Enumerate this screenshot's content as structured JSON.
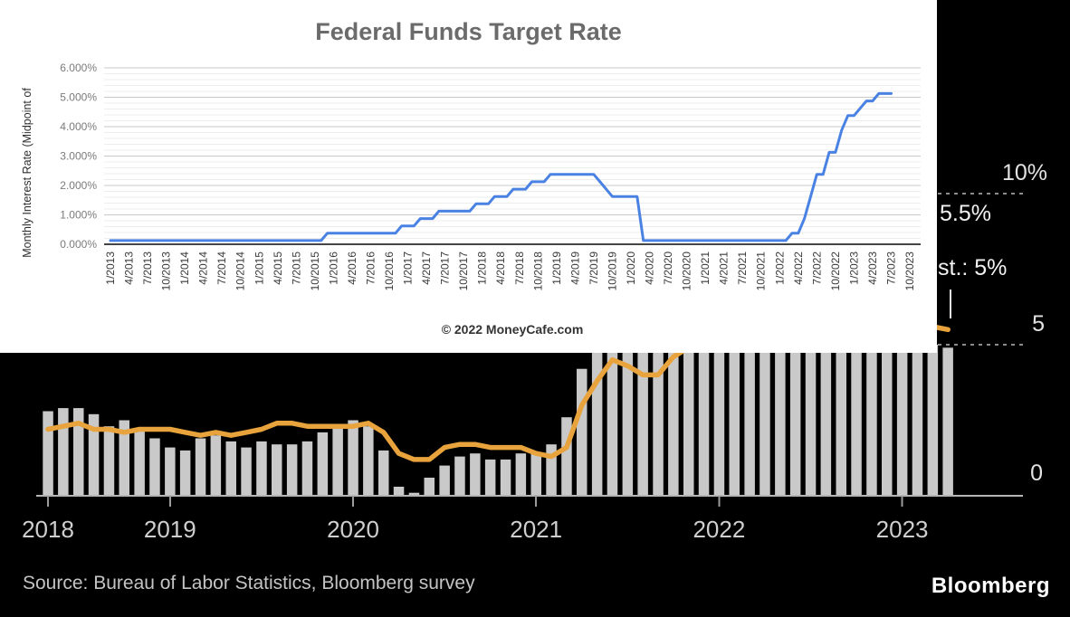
{
  "chart_data": [
    {
      "type": "line",
      "title": "Federal Funds Target Rate",
      "ylabel": "Monthly Interest Rate (Midpoint of",
      "footer": "© 2022 MoneyCafe.com",
      "line_color": "#4a82e4",
      "ylim": [
        0,
        6
      ],
      "y_tick_labels": [
        "6.000%",
        "5.000%",
        "4.000%",
        "3.000%",
        "2.000%",
        "1.000%",
        "0.000%"
      ],
      "x_tick_labels": [
        "1/2013",
        "4/2013",
        "7/2013",
        "10/2013",
        "1/2014",
        "4/2014",
        "7/2014",
        "10/2014",
        "1/2015",
        "4/2015",
        "7/2015",
        "10/2015",
        "1/2016",
        "4/2016",
        "7/2016",
        "10/2016",
        "1/2017",
        "4/2017",
        "7/2017",
        "10/2017",
        "1/2018",
        "4/2018",
        "7/2018",
        "10/2018",
        "1/2019",
        "4/2019",
        "7/2019",
        "10/2019",
        "1/2020",
        "4/2020",
        "7/2020",
        "10/2020",
        "1/2021",
        "4/2021",
        "7/2021",
        "10/2021",
        "1/2022",
        "4/2022",
        "7/2022",
        "10/2022",
        "1/2023",
        "4/2023",
        "7/2023",
        "10/2023"
      ],
      "x_start": "1/2013",
      "x_end_of_line": "7/2023",
      "frequency": "monthly",
      "values_rle": [
        [
          0.125,
          35
        ],
        [
          0.375,
          12
        ],
        [
          0.625,
          3
        ],
        [
          0.875,
          3
        ],
        [
          1.125,
          6
        ],
        [
          1.375,
          3
        ],
        [
          1.625,
          3
        ],
        [
          1.875,
          3
        ],
        [
          2.125,
          3
        ],
        [
          2.375,
          8
        ],
        [
          2.125,
          1
        ],
        [
          1.875,
          1
        ],
        [
          1.625,
          5
        ],
        [
          0.125,
          24
        ],
        [
          0.375,
          2
        ],
        [
          0.875,
          1
        ],
        [
          1.625,
          1
        ],
        [
          2.375,
          2
        ],
        [
          3.125,
          2
        ],
        [
          3.875,
          1
        ],
        [
          4.375,
          2
        ],
        [
          4.625,
          1
        ],
        [
          4.875,
          2
        ],
        [
          5.125,
          3
        ]
      ]
    },
    {
      "type": "bar+line",
      "x_start": "5/2018",
      "frequency": "monthly",
      "ylim": [
        0,
        11
      ],
      "right_axis_labels": [
        "10%",
        "5",
        "0"
      ],
      "right_axis_values": [
        10,
        5,
        0
      ],
      "x_tick_labels": [
        "2018",
        "2019",
        "2020",
        "2021",
        "2022",
        "2023"
      ],
      "x_tick_month_indices": [
        0,
        8,
        20,
        32,
        44,
        56
      ],
      "bar_color": "#c9c9c9",
      "line_color": "#e8a33c",
      "series": [
        {
          "name": "bars",
          "values": [
            2.8,
            2.9,
            2.9,
            2.7,
            2.3,
            2.5,
            2.2,
            1.9,
            1.6,
            1.5,
            1.9,
            2.0,
            1.8,
            1.6,
            1.8,
            1.7,
            1.7,
            1.8,
            2.1,
            2.3,
            2.5,
            2.3,
            1.5,
            0.3,
            0.1,
            0.6,
            1.0,
            1.3,
            1.4,
            1.2,
            1.2,
            1.4,
            1.4,
            1.7,
            2.6,
            4.2,
            5.0,
            5.4,
            5.4,
            5.3,
            5.4,
            6.2,
            6.8,
            7.0,
            7.5,
            7.9,
            8.5,
            8.3,
            8.6,
            9.1,
            8.5,
            8.3,
            8.2,
            7.7,
            7.1,
            6.5,
            6.4,
            6.0,
            5.0,
            4.9
          ]
        },
        {
          "name": "line",
          "values": [
            2.2,
            2.3,
            2.4,
            2.2,
            2.2,
            2.1,
            2.2,
            2.2,
            2.2,
            2.1,
            2.0,
            2.1,
            2.0,
            2.1,
            2.2,
            2.4,
            2.4,
            2.3,
            2.3,
            2.3,
            2.3,
            2.4,
            2.1,
            1.4,
            1.2,
            1.2,
            1.6,
            1.7,
            1.7,
            1.6,
            1.6,
            1.6,
            1.4,
            1.3,
            1.6,
            3.0,
            3.8,
            4.5,
            4.3,
            4.0,
            4.0,
            4.6,
            4.9,
            5.5,
            6.0,
            6.4,
            6.5,
            6.2,
            6.0,
            5.9,
            5.9,
            6.3,
            6.6,
            6.3,
            6.0,
            5.7,
            5.6,
            5.5,
            5.6,
            5.5
          ]
        }
      ],
      "annotations": [
        {
          "text": "5.5%"
        },
        {
          "text": "st.: 5%"
        }
      ],
      "source": "Source: Bureau of Labor Statistics, Bloomberg survey",
      "logo": "Bloomberg"
    }
  ]
}
